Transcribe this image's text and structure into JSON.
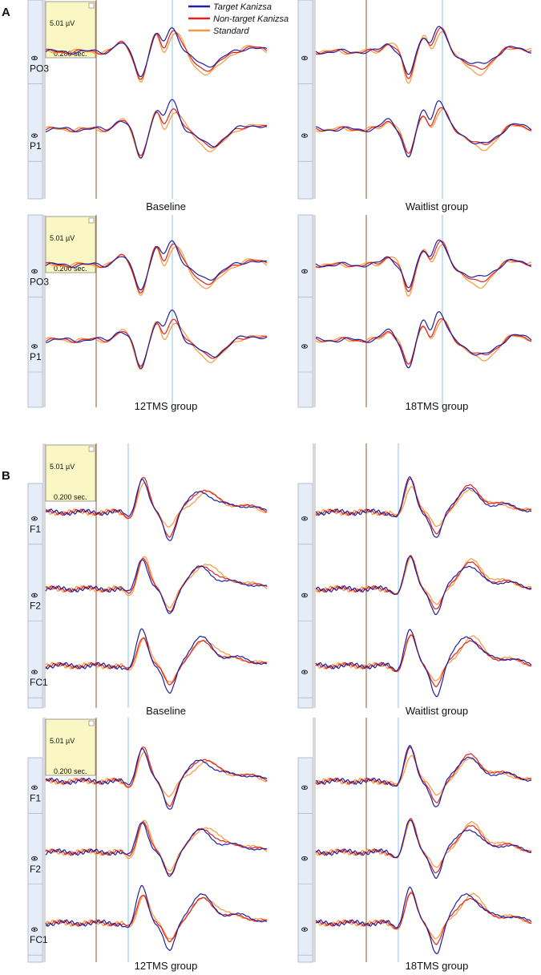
{
  "legend": [
    {
      "label": "Target Kanizsa",
      "color": "#1f1fa0"
    },
    {
      "label": "Non-target Kanizsa",
      "color": "#e0201c"
    },
    {
      "label": "Standard",
      "color": "#f39a3c"
    }
  ],
  "panels": [
    {
      "label": "A",
      "groups": [
        {
          "caption": "Baseline",
          "channels": [
            "PO3",
            "P1"
          ],
          "scale": {
            "amplitude": "5.01 µV",
            "time": "0.200 sec."
          }
        },
        {
          "caption": "Waitlist group"
        },
        {
          "caption": "12TMS group",
          "channels": [
            "PO3",
            "P1"
          ],
          "scale": {
            "amplitude": "5.01 µV",
            "time": "0.200 sec."
          }
        },
        {
          "caption": "18TMS group"
        }
      ]
    },
    {
      "label": "B",
      "groups": [
        {
          "caption": "Baseline",
          "channels": [
            "F1",
            "F2",
            "FC1"
          ],
          "scale": {
            "amplitude": "5.01 µV",
            "time": "0.200 sec."
          }
        },
        {
          "caption": "Waitlist group"
        },
        {
          "caption": "12TMS group",
          "channels": [
            "F1",
            "F2",
            "FC1"
          ],
          "scale": {
            "amplitude": "5.01 µV",
            "time": "0.200 sec."
          }
        },
        {
          "caption": "18TMS group"
        }
      ]
    }
  ]
}
